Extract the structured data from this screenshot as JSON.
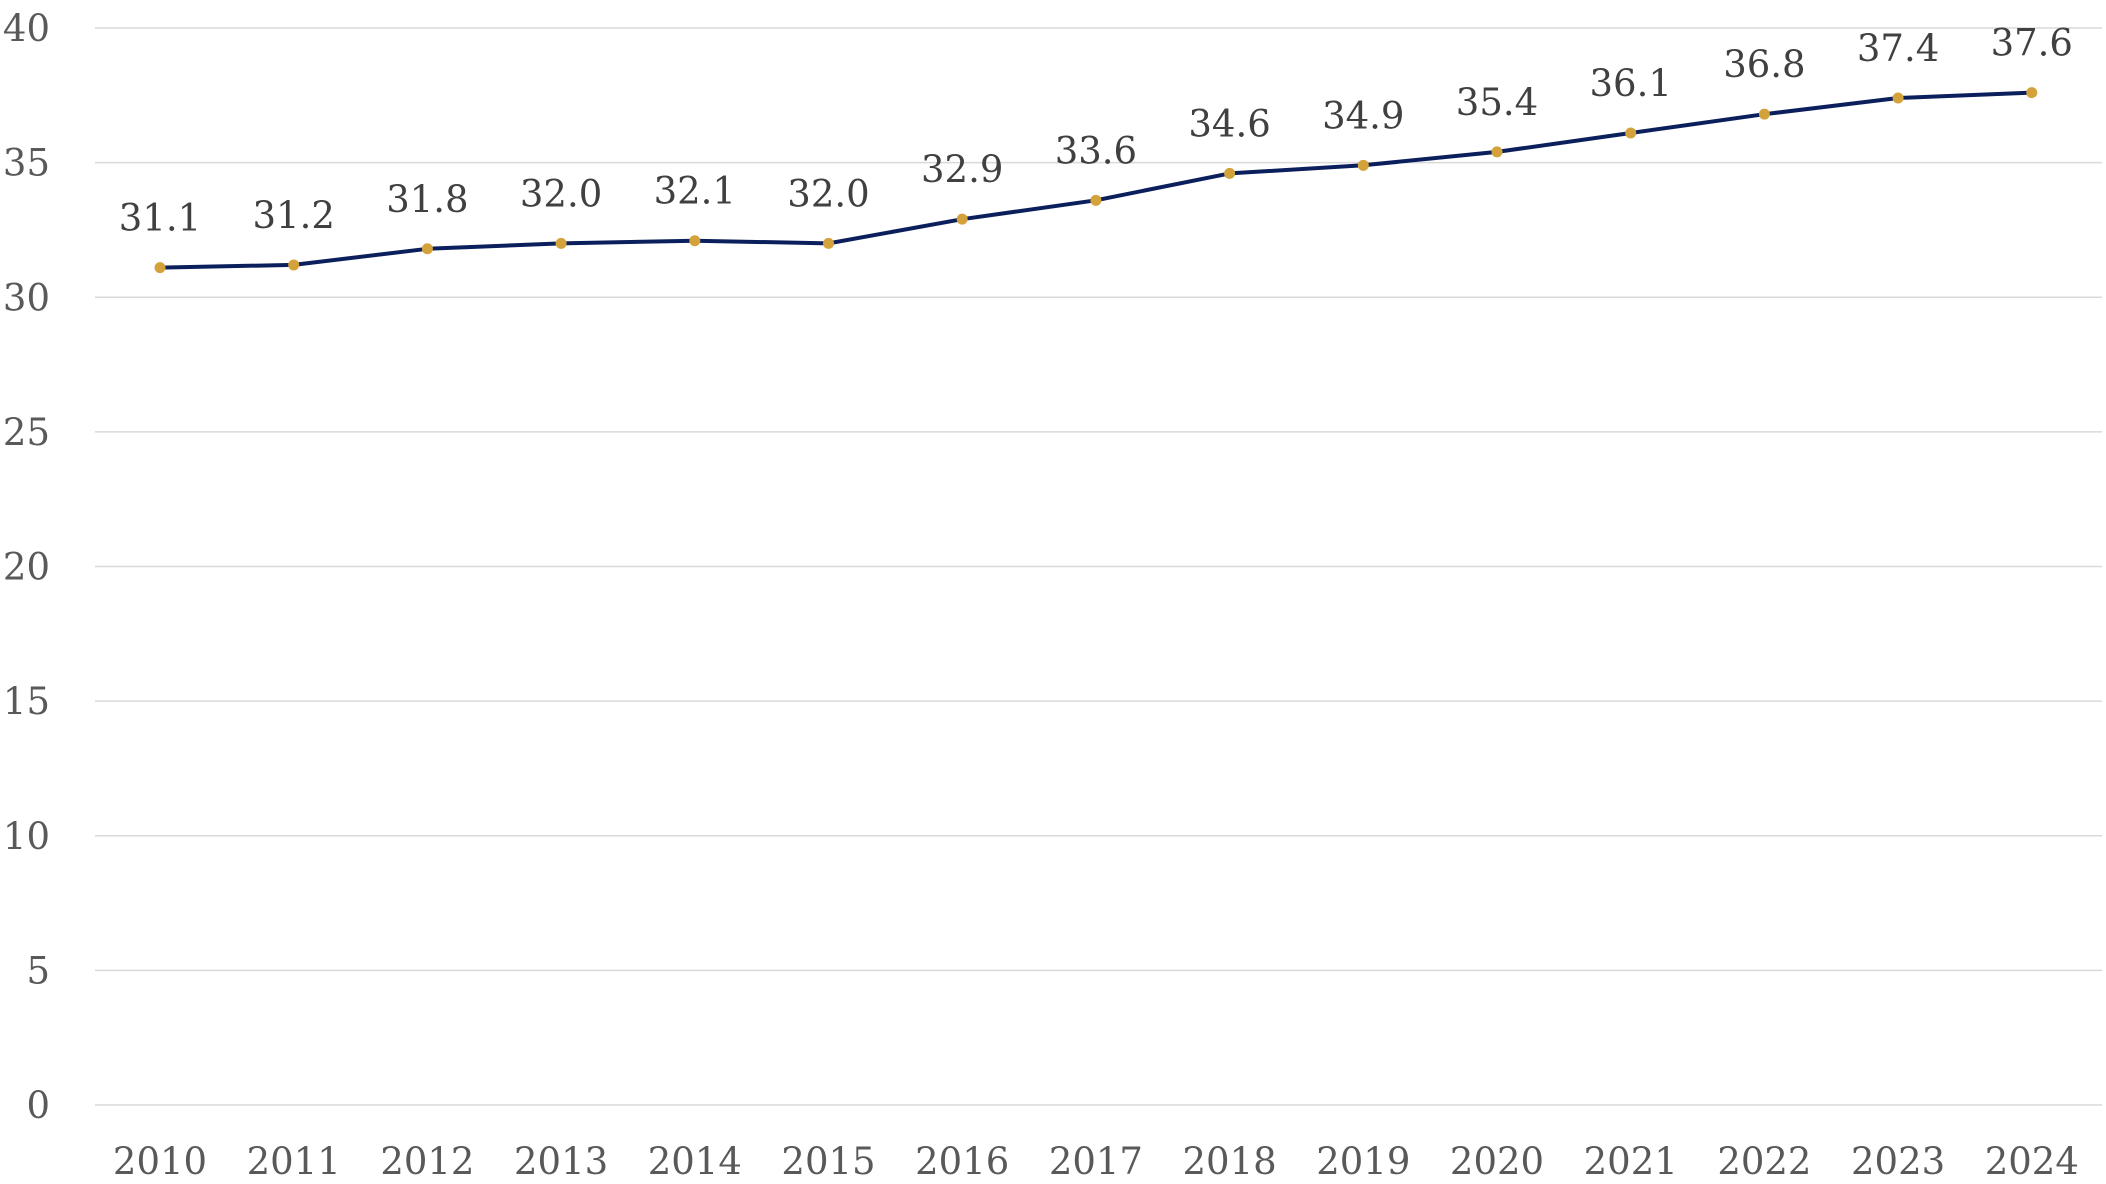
{
  "chart_data": {
    "type": "line",
    "title": "",
    "xlabel": "",
    "ylabel": "",
    "categories": [
      "2010",
      "2011",
      "2012",
      "2013",
      "2014",
      "2015",
      "2016",
      "2017",
      "2018",
      "2019",
      "2020",
      "2021",
      "2022",
      "2023",
      "2024"
    ],
    "series": [
      {
        "values": [
          31.1,
          31.2,
          31.8,
          32.0,
          32.1,
          32.0,
          32.9,
          33.6,
          34.6,
          34.9,
          35.4,
          36.1,
          36.8,
          37.4,
          37.6
        ],
        "data_labels": [
          "31.1",
          "31.2",
          "31.8",
          "32.0",
          "32.1",
          "32.0",
          "32.9",
          "33.6",
          "34.6",
          "34.9",
          "35.4",
          "36.1",
          "36.8",
          "37.4",
          "37.6"
        ]
      }
    ],
    "ylim": [
      0,
      40
    ],
    "yticks": [
      "0",
      "5",
      "10",
      "15",
      "20",
      "25",
      "30",
      "35",
      "40"
    ],
    "grid": true,
    "legend": "none",
    "colors": {
      "line": "#0b1f5c",
      "marker": "#d4a23a",
      "grid": "#d9d9d9",
      "axis_text": "#595959",
      "data_label_text": "#404040"
    }
  }
}
